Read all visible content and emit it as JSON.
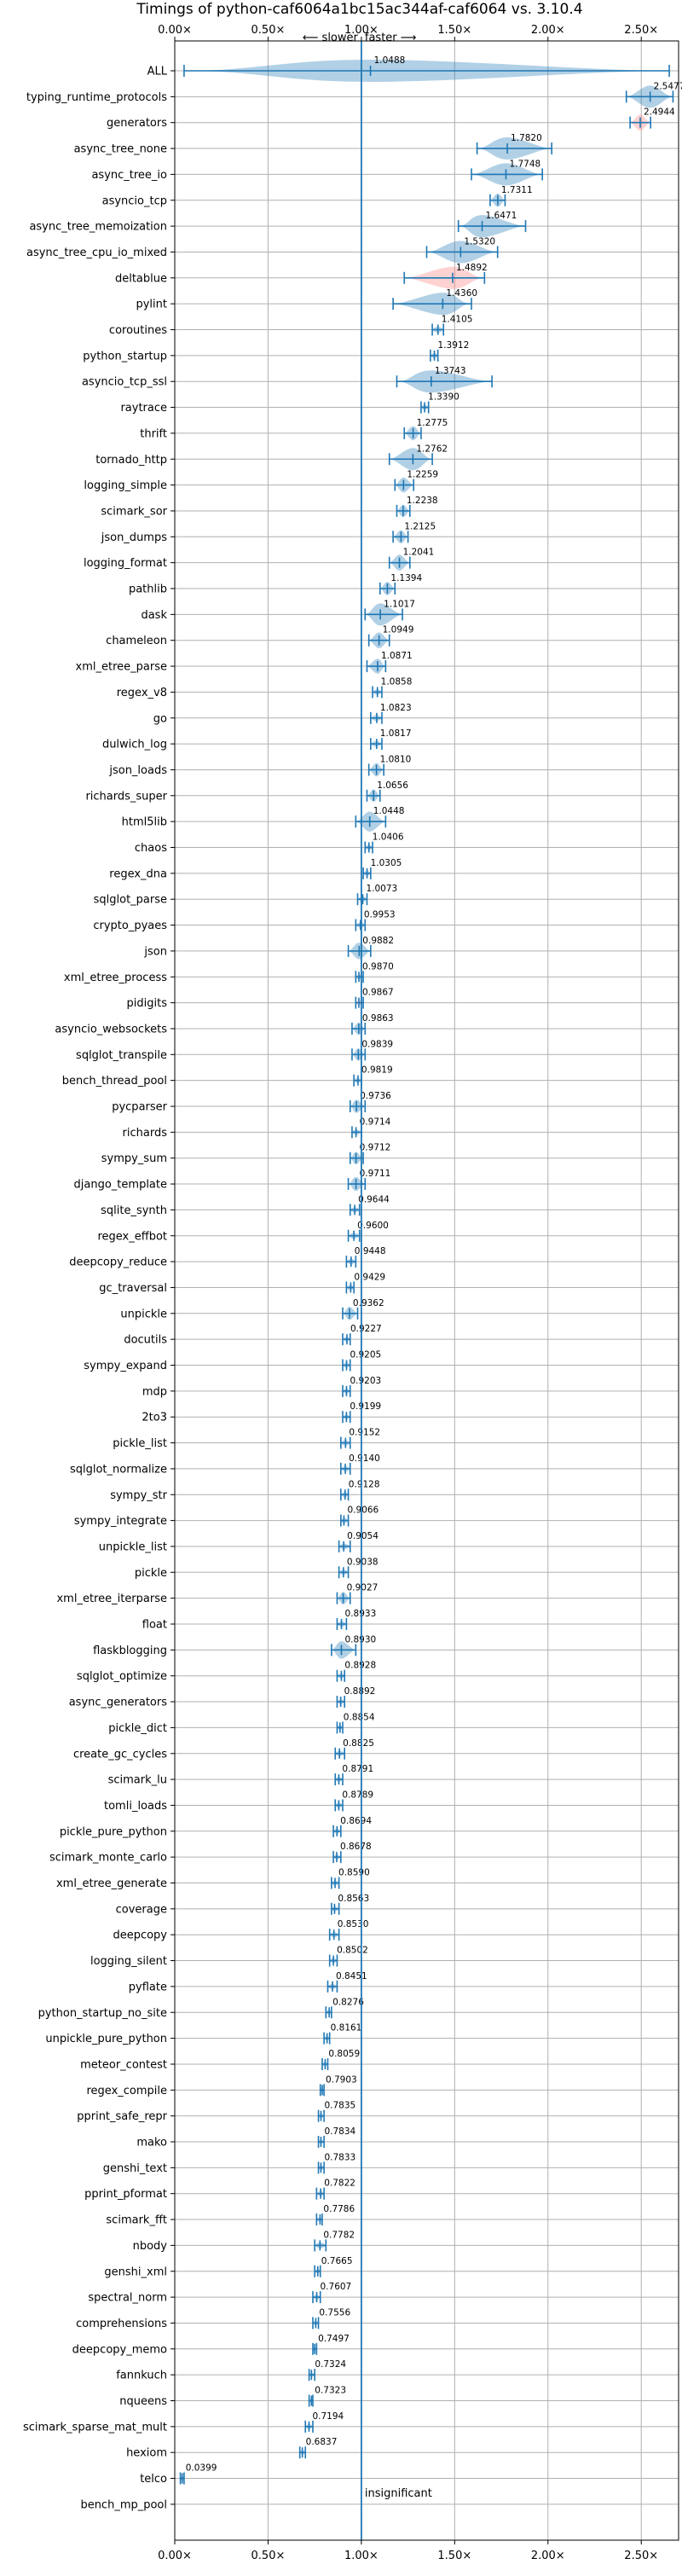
{
  "chart_data": {
    "type": "violin",
    "title": "Timings of python-caf6064a1bc15ac344af-caf6064 vs. 3.10.4",
    "direction_slower": "⟵ slower",
    "direction_faster": "faster ⟶",
    "annotation_insignificant": "insignificant",
    "xlim": [
      0.0,
      2.7
    ],
    "x_ticks": [
      {
        "value": 0.0,
        "label": "0.00×"
      },
      {
        "value": 0.5,
        "label": "0.50×"
      },
      {
        "value": 1.0,
        "label": "1.00×"
      },
      {
        "value": 1.5,
        "label": "1.50×"
      },
      {
        "value": 2.0,
        "label": "2.00×"
      },
      {
        "value": 2.5,
        "label": "2.50×"
      }
    ],
    "reference_line": 1.0,
    "grid": true,
    "categories": [
      "ALL",
      "typing_runtime_protocols",
      "generators",
      "async_tree_none",
      "async_tree_io",
      "asyncio_tcp",
      "async_tree_memoization",
      "async_tree_cpu_io_mixed",
      "deltablue",
      "pylint",
      "coroutines",
      "python_startup",
      "asyncio_tcp_ssl",
      "raytrace",
      "thrift",
      "tornado_http",
      "logging_simple",
      "scimark_sor",
      "json_dumps",
      "logging_format",
      "pathlib",
      "dask",
      "chameleon",
      "xml_etree_parse",
      "regex_v8",
      "go",
      "dulwich_log",
      "json_loads",
      "richards_super",
      "html5lib",
      "chaos",
      "regex_dna",
      "sqlglot_parse",
      "crypto_pyaes",
      "json",
      "xml_etree_process",
      "pidigits",
      "asyncio_websockets",
      "sqlglot_transpile",
      "bench_thread_pool",
      "pycparser",
      "richards",
      "sympy_sum",
      "django_template",
      "sqlite_synth",
      "regex_effbot",
      "deepcopy_reduce",
      "gc_traversal",
      "unpickle",
      "docutils",
      "sympy_expand",
      "mdp",
      "2to3",
      "pickle_list",
      "sqlglot_normalize",
      "sympy_str",
      "sympy_integrate",
      "unpickle_list",
      "pickle",
      "xml_etree_iterparse",
      "float",
      "flaskblogging",
      "sqlglot_optimize",
      "async_generators",
      "pickle_dict",
      "create_gc_cycles",
      "scimark_lu",
      "tomli_loads",
      "pickle_pure_python",
      "scimark_monte_carlo",
      "xml_etree_generate",
      "coverage",
      "deepcopy",
      "logging_silent",
      "pyflate",
      "python_startup_no_site",
      "unpickle_pure_python",
      "meteor_contest",
      "regex_compile",
      "pprint_safe_repr",
      "mako",
      "genshi_text",
      "pprint_pformat",
      "scimark_fft",
      "nbody",
      "genshi_xml",
      "spectral_norm",
      "comprehensions",
      "deepcopy_memo",
      "fannkuch",
      "nqueens",
      "scimark_sparse_mat_mult",
      "hexiom",
      "telco",
      "bench_mp_pool"
    ],
    "values": [
      1.0488,
      2.5477,
      2.4944,
      1.782,
      1.7748,
      1.7311,
      1.6471,
      1.532,
      1.4892,
      1.436,
      1.4105,
      1.3912,
      1.3743,
      1.339,
      1.2775,
      1.2762,
      1.2259,
      1.2238,
      1.2125,
      1.2041,
      1.1394,
      1.1017,
      1.0949,
      1.0871,
      1.0858,
      1.0823,
      1.0817,
      1.081,
      1.0656,
      1.0448,
      1.0406,
      1.0305,
      1.0073,
      0.9953,
      0.9882,
      0.987,
      0.9867,
      0.9863,
      0.9839,
      0.9819,
      0.9736,
      0.9714,
      0.9712,
      0.9711,
      0.9644,
      0.96,
      0.9448,
      0.9429,
      0.9362,
      0.9227,
      0.9205,
      0.9203,
      0.9199,
      0.9152,
      0.914,
      0.9128,
      0.9066,
      0.9054,
      0.9038,
      0.9027,
      0.8933,
      0.893,
      0.8928,
      0.8892,
      0.8854,
      0.8825,
      0.8791,
      0.8789,
      0.8694,
      0.8678,
      0.859,
      0.8563,
      0.853,
      0.8502,
      0.8451,
      0.8276,
      0.8161,
      0.8059,
      0.7903,
      0.7835,
      0.7834,
      0.7833,
      0.7822,
      0.7786,
      0.7782,
      0.7665,
      0.7607,
      0.7556,
      0.7497,
      0.7324,
      0.7323,
      0.7194,
      0.6837,
      0.0399,
      null
    ],
    "value_labels": [
      "1.0488",
      "2.5477",
      "2.4944",
      "1.7820",
      "1.7748",
      "1.7311",
      "1.6471",
      "1.5320",
      "1.4892",
      "1.4360",
      "1.4105",
      "1.3912",
      "1.3743",
      "1.3390",
      "1.2775",
      "1.2762",
      "1.2259",
      "1.2238",
      "1.2125",
      "1.2041",
      "1.1394",
      "1.1017",
      "1.0949",
      "1.0871",
      "1.0858",
      "1.0823",
      "1.0817",
      "1.0810",
      "1.0656",
      "1.0448",
      "1.0406",
      "1.0305",
      "1.0073",
      "0.9953",
      "0.9882",
      "0.9870",
      "0.9867",
      "0.9863",
      "0.9839",
      "0.9819",
      "0.9736",
      "0.9714",
      "0.9712",
      "0.9711",
      "0.9644",
      "0.9600",
      "0.9448",
      "0.9429",
      "0.9362",
      "0.9227",
      "0.9205",
      "0.9203",
      "0.9199",
      "0.9152",
      "0.9140",
      "0.9128",
      "0.9066",
      "0.9054",
      "0.9038",
      "0.9027",
      "0.8933",
      "0.8930",
      "0.8928",
      "0.8892",
      "0.8854",
      "0.8825",
      "0.8791",
      "0.8789",
      "0.8694",
      "0.8678",
      "0.8590",
      "0.8563",
      "0.8530",
      "0.8502",
      "0.8451",
      "0.8276",
      "0.8161",
      "0.8059",
      "0.7903",
      "0.7835",
      "0.7834",
      "0.7833",
      "0.7822",
      "0.7786",
      "0.7782",
      "0.7665",
      "0.7607",
      "0.7556",
      "0.7497",
      "0.7324",
      "0.7323",
      "0.7194",
      "0.6837",
      "0.0399",
      ""
    ],
    "ranges": [
      [
        0.05,
        2.65
      ],
      [
        2.42,
        2.67
      ],
      [
        2.44,
        2.55
      ],
      [
        1.62,
        2.02
      ],
      [
        1.59,
        1.97
      ],
      [
        1.69,
        1.77
      ],
      [
        1.52,
        1.88
      ],
      [
        1.35,
        1.73
      ],
      [
        1.23,
        1.66
      ],
      [
        1.17,
        1.59
      ],
      [
        1.38,
        1.44
      ],
      [
        1.37,
        1.41
      ],
      [
        1.19,
        1.7
      ],
      [
        1.32,
        1.36
      ],
      [
        1.23,
        1.32
      ],
      [
        1.15,
        1.38
      ],
      [
        1.18,
        1.28
      ],
      [
        1.19,
        1.26
      ],
      [
        1.17,
        1.25
      ],
      [
        1.15,
        1.26
      ],
      [
        1.1,
        1.18
      ],
      [
        1.02,
        1.22
      ],
      [
        1.04,
        1.15
      ],
      [
        1.03,
        1.13
      ],
      [
        1.06,
        1.11
      ],
      [
        1.05,
        1.11
      ],
      [
        1.05,
        1.11
      ],
      [
        1.04,
        1.12
      ],
      [
        1.03,
        1.1
      ],
      [
        0.97,
        1.13
      ],
      [
        1.02,
        1.06
      ],
      [
        1.01,
        1.05
      ],
      [
        0.98,
        1.03
      ],
      [
        0.97,
        1.02
      ],
      [
        0.93,
        1.05
      ],
      [
        0.97,
        1.01
      ],
      [
        0.97,
        1.01
      ],
      [
        0.95,
        1.02
      ],
      [
        0.95,
        1.02
      ],
      [
        0.96,
        1.0
      ],
      [
        0.94,
        1.02
      ],
      [
        0.95,
        1.0
      ],
      [
        0.94,
        1.01
      ],
      [
        0.93,
        1.02
      ],
      [
        0.94,
        0.99
      ],
      [
        0.93,
        0.99
      ],
      [
        0.92,
        0.97
      ],
      [
        0.92,
        0.96
      ],
      [
        0.9,
        0.98
      ],
      [
        0.9,
        0.94
      ],
      [
        0.9,
        0.94
      ],
      [
        0.9,
        0.94
      ],
      [
        0.9,
        0.94
      ],
      [
        0.89,
        0.94
      ],
      [
        0.89,
        0.94
      ],
      [
        0.89,
        0.93
      ],
      [
        0.89,
        0.93
      ],
      [
        0.88,
        0.94
      ],
      [
        0.88,
        0.93
      ],
      [
        0.87,
        0.94
      ],
      [
        0.87,
        0.92
      ],
      [
        0.84,
        0.97
      ],
      [
        0.87,
        0.91
      ],
      [
        0.87,
        0.91
      ],
      [
        0.87,
        0.9
      ],
      [
        0.86,
        0.91
      ],
      [
        0.86,
        0.9
      ],
      [
        0.86,
        0.9
      ],
      [
        0.85,
        0.89
      ],
      [
        0.85,
        0.89
      ],
      [
        0.84,
        0.88
      ],
      [
        0.84,
        0.88
      ],
      [
        0.83,
        0.88
      ],
      [
        0.83,
        0.87
      ],
      [
        0.82,
        0.87
      ],
      [
        0.81,
        0.84
      ],
      [
        0.8,
        0.83
      ],
      [
        0.79,
        0.82
      ],
      [
        0.78,
        0.8
      ],
      [
        0.77,
        0.8
      ],
      [
        0.77,
        0.8
      ],
      [
        0.77,
        0.8
      ],
      [
        0.76,
        0.8
      ],
      [
        0.76,
        0.79
      ],
      [
        0.75,
        0.81
      ],
      [
        0.75,
        0.78
      ],
      [
        0.74,
        0.78
      ],
      [
        0.74,
        0.77
      ],
      [
        0.74,
        0.76
      ],
      [
        0.72,
        0.75
      ],
      [
        0.72,
        0.74
      ],
      [
        0.7,
        0.74
      ],
      [
        0.67,
        0.7
      ],
      [
        0.03,
        0.05
      ],
      null
    ],
    "highlighted": [
      "generators",
      "deltablue",
      "pidigits"
    ],
    "colors": {
      "violin": "#1f77b4",
      "violin_highlight": "#ff7f7f",
      "grid": "#b0b0b0",
      "reference_line": "#1f77b4",
      "text": "#000000"
    }
  }
}
